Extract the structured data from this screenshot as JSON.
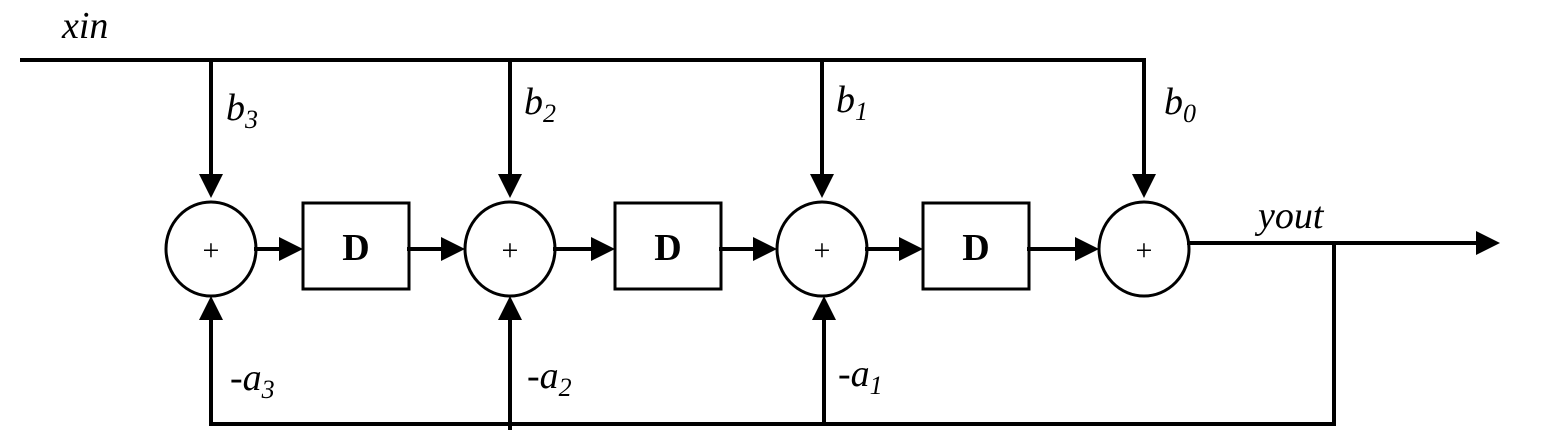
{
  "signals": {
    "input": "xin",
    "output": "yout"
  },
  "delay_label": "D",
  "adder_symbol": "+",
  "coefficients": {
    "feedforward": [
      {
        "base": "b",
        "index": "3"
      },
      {
        "base": "b",
        "index": "2"
      },
      {
        "base": "b",
        "index": "1"
      },
      {
        "base": "b",
        "index": "0"
      }
    ],
    "feedback": [
      {
        "base": "-a",
        "index": "3"
      },
      {
        "base": "-a",
        "index": "2"
      },
      {
        "base": "-a",
        "index": "1"
      }
    ]
  }
}
